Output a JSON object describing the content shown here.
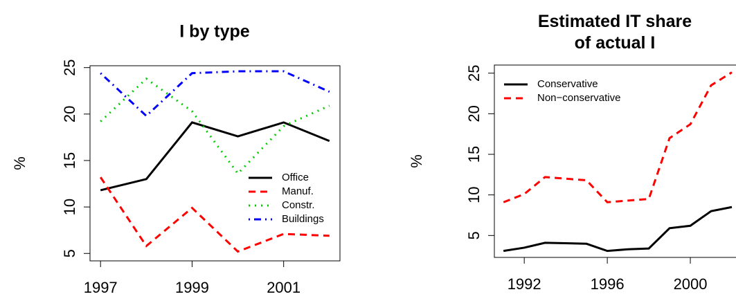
{
  "chart_data": [
    {
      "type": "line",
      "title": "I by type",
      "ylabel": "%",
      "x": [
        1997,
        1998,
        1999,
        2000,
        2001,
        2002
      ],
      "series": [
        {
          "name": "Office",
          "color": "#000000",
          "linestyle": "solid",
          "values": [
            11.8,
            13.0,
            19.1,
            17.6,
            19.1,
            17.1
          ]
        },
        {
          "name": "Manuf.",
          "color": "#ff0000",
          "linestyle": "dashed",
          "values": [
            13.2,
            5.8,
            9.9,
            5.2,
            7.1,
            6.9
          ]
        },
        {
          "name": "Constr.",
          "color": "#00cd00",
          "linestyle": "dotted",
          "values": [
            19.2,
            23.8,
            20.3,
            13.6,
            18.7,
            20.9
          ]
        },
        {
          "name": "Buildings",
          "color": "#0000ff",
          "linestyle": "dashdot",
          "values": [
            24.4,
            19.8,
            24.4,
            24.6,
            24.6,
            22.4
          ]
        }
      ],
      "xlim": [
        1996.77,
        2002.23
      ],
      "xticks": [
        1997,
        1999,
        2001
      ],
      "ylim": [
        4.2,
        25.2
      ],
      "yticks": [
        5,
        10,
        15,
        20,
        25
      ],
      "legend": "lower right"
    },
    {
      "type": "line",
      "title": "Estimated IT share\nof actual I",
      "ylabel": "%",
      "x": [
        1991,
        1992,
        1993,
        1994,
        1995,
        1996,
        1997,
        1998,
        1999,
        2000,
        2001,
        2002
      ],
      "series": [
        {
          "name": "Conservative",
          "color": "#000000",
          "linestyle": "solid",
          "values": [
            3.1,
            3.5,
            4.1,
            4.05,
            3.98,
            3.1,
            3.3,
            3.4,
            5.9,
            6.2,
            8.0,
            8.5
          ]
        },
        {
          "name": "Non−conservative",
          "color": "#ff0000",
          "linestyle": "dashed",
          "values": [
            9.1,
            10.1,
            12.2,
            12.0,
            11.8,
            9.1,
            9.3,
            9.5,
            17.0,
            18.7,
            23.5,
            25.1
          ]
        }
      ],
      "xlim": [
        1990.56,
        2002.4
      ],
      "xticks": [
        1992,
        1996,
        2000
      ],
      "ylim": [
        2.3,
        26.0
      ],
      "yticks": [
        5,
        10,
        15,
        20,
        25
      ],
      "legend": "upper left"
    }
  ]
}
